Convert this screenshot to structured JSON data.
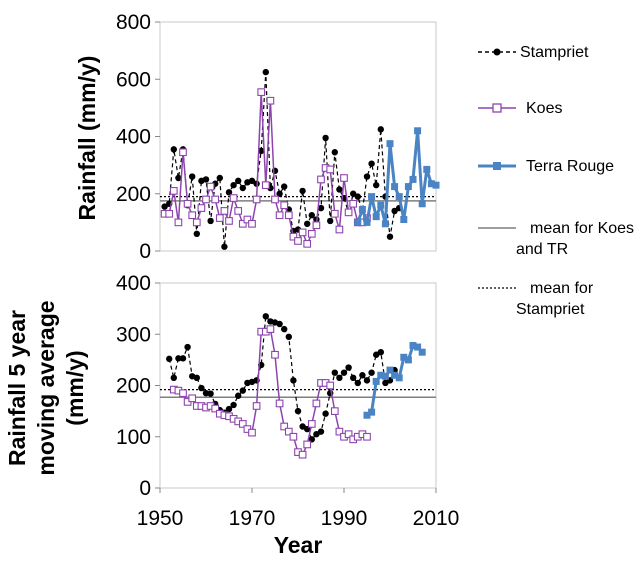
{
  "chart_data": {
    "type": "line",
    "xlabel": "Year",
    "xlim": [
      1950,
      2010
    ],
    "x_ticks": [
      "1950",
      "1970",
      "1990",
      "2010"
    ],
    "colors": {
      "stampriet": "#000000",
      "koes": "#8e44ad",
      "terra_rouge": "#4a84c4",
      "mean_koes_tr": "#7f7f7f",
      "mean_stampriet": "#000000"
    },
    "legend": {
      "stampriet": "Stampriet",
      "koes": "Koes",
      "terra_rouge": "Terra Rouge",
      "mean_koes_tr_line1": "mean for Koes",
      "mean_koes_tr_line2": "and TR",
      "mean_stampriet_line1": "mean for",
      "mean_stampriet_line2": "Stampriet"
    },
    "panels": [
      {
        "ylabel": "Rainfall (mm/y)",
        "ylim": [
          0,
          800
        ],
        "y_ticks": [
          "0",
          "200",
          "400",
          "600",
          "800"
        ],
        "mean_koes_tr": 175,
        "mean_stampriet": 190,
        "series": [
          {
            "name": "Stampriet",
            "x": [
              1951,
              1952,
              1953,
              1954,
              1955,
              1956,
              1957,
              1958,
              1959,
              1960,
              1961,
              1962,
              1963,
              1964,
              1965,
              1966,
              1967,
              1968,
              1969,
              1970,
              1971,
              1972,
              1973,
              1974,
              1975,
              1976,
              1977,
              1978,
              1979,
              1980,
              1981,
              1982,
              1983,
              1984,
              1985,
              1986,
              1987,
              1988,
              1989,
              1990,
              1991,
              1992,
              1993,
              1994,
              1995,
              1996,
              1997,
              1998,
              1999,
              2000,
              2001,
              2002
            ],
            "values": [
              155,
              165,
              355,
              255,
              355,
              160,
              260,
              60,
              245,
              250,
              105,
              235,
              255,
              15,
              205,
              230,
              245,
              220,
              240,
              245,
              235,
              350,
              625,
              220,
              280,
              200,
              225,
              145,
              70,
              75,
              210,
              95,
              125,
              110,
              150,
              395,
              105,
              345,
              215,
              185,
              135,
              200,
              190,
              140,
              260,
              305,
              230,
              425,
              190,
              50,
              140,
              150
            ]
          },
          {
            "name": "Koes",
            "x": [
              1951,
              1952,
              1953,
              1954,
              1955,
              1956,
              1957,
              1958,
              1959,
              1960,
              1961,
              1962,
              1963,
              1964,
              1965,
              1966,
              1967,
              1968,
              1969,
              1970,
              1971,
              1972,
              1973,
              1974,
              1975,
              1976,
              1977,
              1978,
              1979,
              1980,
              1981,
              1982,
              1983,
              1984,
              1985,
              1986,
              1987,
              1988,
              1989,
              1990,
              1991,
              1992,
              1993,
              1994,
              1995
            ],
            "values": [
              130,
              130,
              210,
              100,
              345,
              165,
              125,
              100,
              150,
              180,
              225,
              180,
              115,
              140,
              105,
              185,
              140,
              95,
              110,
              95,
              180,
              555,
              230,
              525,
              180,
              125,
              160,
              125,
              50,
              35,
              65,
              25,
              60,
              90,
              250,
              290,
              285,
              130,
              75,
              255,
              135,
              165,
              100,
              100,
              115
            ]
          },
          {
            "name": "Terra Rouge",
            "x": [
              1993,
              1994,
              1995,
              1996,
              1997,
              1998,
              1999,
              2000,
              2001,
              2002,
              2003,
              2004,
              2005,
              2006,
              2007,
              2008,
              2009,
              2010
            ],
            "values": [
              100,
              145,
              100,
              190,
              120,
              160,
              95,
              375,
              225,
              190,
              110,
              225,
              250,
              420,
              165,
              285,
              235,
              230
            ]
          }
        ]
      },
      {
        "ylabel_lines": [
          "Rainfall 5 year",
          "moving average",
          "(mm/y)"
        ],
        "ylim": [
          0,
          400
        ],
        "y_ticks": [
          "0",
          "100",
          "200",
          "300",
          "400"
        ],
        "mean_koes_tr": 177,
        "mean_stampriet": 192,
        "series": [
          {
            "name": "Stampriet",
            "x": [
              1952,
              1953,
              1954,
              1955,
              1956,
              1957,
              1958,
              1959,
              1960,
              1961,
              1962,
              1963,
              1964,
              1965,
              1966,
              1967,
              1968,
              1969,
              1970,
              1971,
              1972,
              1973,
              1974,
              1975,
              1976,
              1977,
              1978,
              1979,
              1980,
              1981,
              1982,
              1983,
              1984,
              1985,
              1986,
              1987,
              1988,
              1989,
              1990,
              1991,
              1992,
              1993,
              1994,
              1995,
              1996,
              1997,
              1998,
              1999,
              2000,
              2001
            ],
            "values": [
              252,
              215,
              253,
              253,
              275,
              218,
              215,
              195,
              185,
              184,
              164,
              152,
              147,
              154,
              162,
              180,
              190,
              205,
              207,
              210,
              240,
              335,
              325,
              323,
              320,
              310,
              295,
              210,
              150,
              120,
              115,
              95,
              105,
              110,
              145,
              185,
              225,
              215,
              225,
              235,
              215,
              205,
              220,
              210,
              225,
              260,
              265,
              205,
              210,
              230
            ]
          },
          {
            "name": "Koes",
            "x": [
              1953,
              1954,
              1955,
              1956,
              1957,
              1958,
              1959,
              1960,
              1961,
              1962,
              1963,
              1964,
              1965,
              1966,
              1967,
              1968,
              1969,
              1970,
              1971,
              1972,
              1973,
              1974,
              1975,
              1976,
              1977,
              1978,
              1979,
              1980,
              1981,
              1982,
              1983,
              1984,
              1985,
              1986,
              1987,
              1988,
              1989,
              1990,
              1991,
              1992,
              1993,
              1994,
              1995
            ],
            "values": [
              192,
              190,
              185,
              168,
              175,
              160,
              160,
              157,
              160,
              155,
              145,
              142,
              140,
              135,
              130,
              125,
              115,
              108,
              160,
              305,
              305,
              310,
              260,
              165,
              120,
              110,
              100,
              70,
              65,
              85,
              125,
              165,
              205,
              205,
              200,
              150,
              110,
              100,
              105,
              95,
              100,
              105,
              100
            ]
          },
          {
            "name": "Terra Rouge",
            "x": [
              1995,
              1996,
              1997,
              1998,
              1999,
              2000,
              2001,
              2002,
              2003,
              2004,
              2005,
              2006,
              2007
            ],
            "values": [
              142,
              148,
              208,
              220,
              218,
              230,
              220,
              215,
              255,
              250,
              278,
              275,
              265
            ]
          }
        ]
      }
    ]
  }
}
